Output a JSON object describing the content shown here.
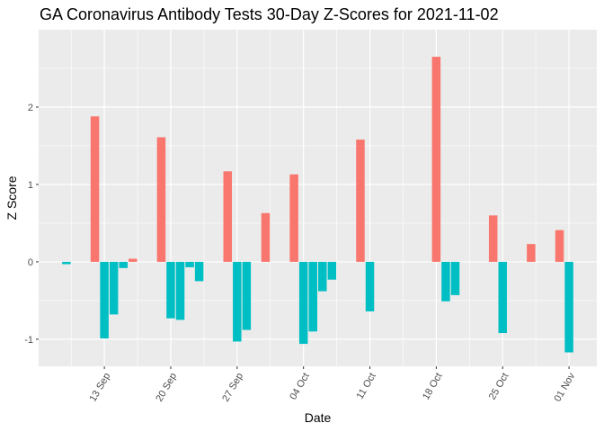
{
  "chart_data": {
    "type": "bar",
    "title": "GA Coronavirus Antibody Tests 30-Day Z-Scores for 2021-11-02",
    "xlabel": "Date",
    "ylabel": "Z Score",
    "ylim": [
      -1.35,
      3.0
    ],
    "y_ticks": [
      -1,
      0,
      1,
      2
    ],
    "x_ticks": [
      {
        "label": "13 Sep",
        "date": "2021-09-13"
      },
      {
        "label": "20 Sep",
        "date": "2021-09-20"
      },
      {
        "label": "27 Sep",
        "date": "2021-09-27"
      },
      {
        "label": "04 Oct",
        "date": "2021-10-04"
      },
      {
        "label": "11 Oct",
        "date": "2021-10-11"
      },
      {
        "label": "18 Oct",
        "date": "2021-10-18"
      },
      {
        "label": "25 Oct",
        "date": "2021-10-25"
      },
      {
        "label": "01 Nov",
        "date": "2021-11-01"
      }
    ],
    "grid": true,
    "legend": "none",
    "colors": {
      "positive": "#f8766d",
      "negative": "#00bfc4",
      "panel": "#ebebeb",
      "grid": "#ffffff"
    },
    "bars": [
      {
        "date": "2021-09-09",
        "value": -0.03
      },
      {
        "date": "2021-09-12",
        "value": 1.88
      },
      {
        "date": "2021-09-13",
        "value": -0.99
      },
      {
        "date": "2021-09-14",
        "value": -0.68
      },
      {
        "date": "2021-09-15",
        "value": -0.08
      },
      {
        "date": "2021-09-16",
        "value": 0.04
      },
      {
        "date": "2021-09-19",
        "value": 1.61
      },
      {
        "date": "2021-09-20",
        "value": -0.73
      },
      {
        "date": "2021-09-21",
        "value": -0.75
      },
      {
        "date": "2021-09-22",
        "value": -0.07
      },
      {
        "date": "2021-09-23",
        "value": -0.25
      },
      {
        "date": "2021-09-26",
        "value": 1.17
      },
      {
        "date": "2021-09-27",
        "value": -1.03
      },
      {
        "date": "2021-09-28",
        "value": -0.88
      },
      {
        "date": "2021-09-30",
        "value": 0.63
      },
      {
        "date": "2021-10-03",
        "value": 1.13
      },
      {
        "date": "2021-10-04",
        "value": -1.06
      },
      {
        "date": "2021-10-05",
        "value": -0.9
      },
      {
        "date": "2021-10-06",
        "value": -0.38
      },
      {
        "date": "2021-10-07",
        "value": -0.23
      },
      {
        "date": "2021-10-10",
        "value": 1.58
      },
      {
        "date": "2021-10-11",
        "value": -0.64
      },
      {
        "date": "2021-10-18",
        "value": 2.65
      },
      {
        "date": "2021-10-19",
        "value": -0.51
      },
      {
        "date": "2021-10-20",
        "value": -0.43
      },
      {
        "date": "2021-10-24",
        "value": 0.6
      },
      {
        "date": "2021-10-25",
        "value": -0.92
      },
      {
        "date": "2021-10-28",
        "value": 0.23
      },
      {
        "date": "2021-10-31",
        "value": 0.41
      },
      {
        "date": "2021-11-01",
        "value": -1.17
      }
    ]
  }
}
